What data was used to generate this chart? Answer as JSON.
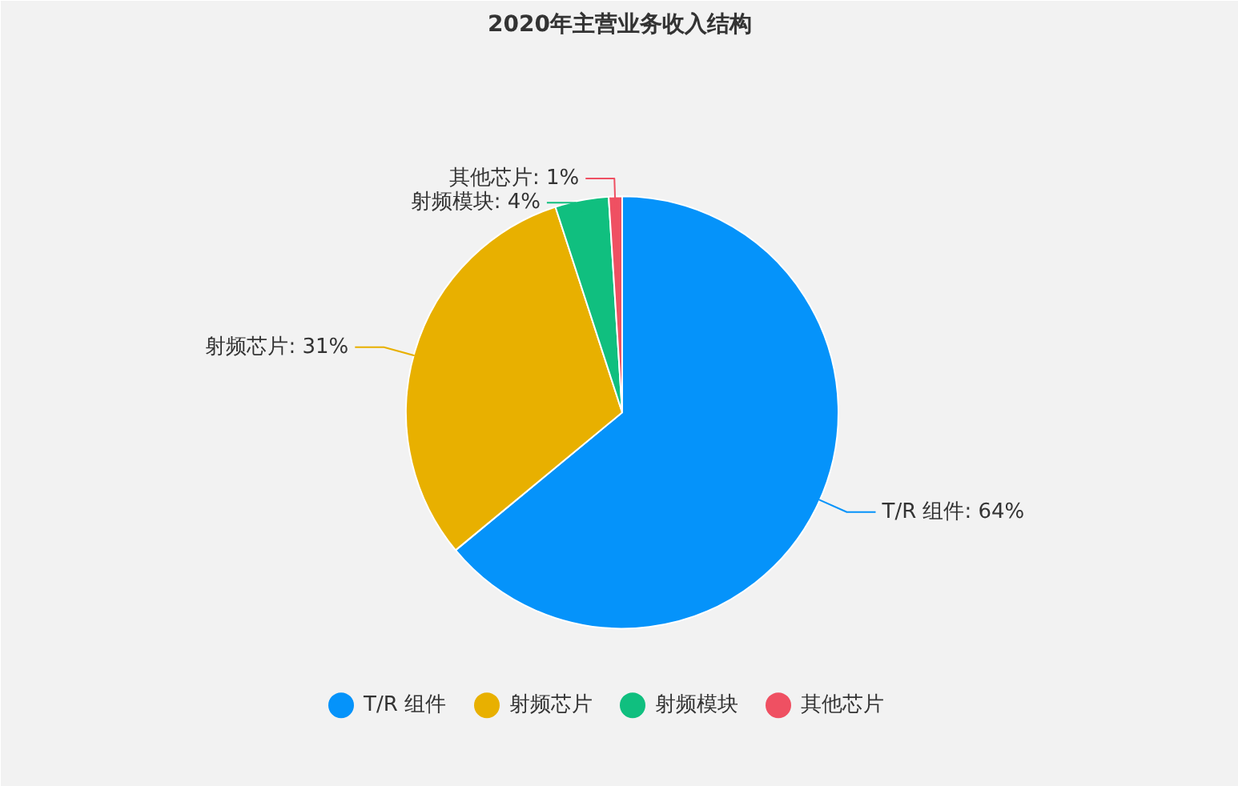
{
  "chart_data": {
    "type": "pie",
    "title": "2020年主营业务收入结构",
    "categories": [
      "T/R 组件",
      "射频芯片",
      "射频模块",
      "其他芯片"
    ],
    "values": [
      64,
      31,
      4,
      1
    ],
    "colors": [
      "#0593fa",
      "#e8b000",
      "#10bf7f",
      "#ef5062"
    ],
    "value_labels": [
      "T/R 组件: 64%",
      "射频芯片: 31%",
      "射频模块: 4%",
      "其他芯片: 1%"
    ],
    "legend": "bottom"
  }
}
